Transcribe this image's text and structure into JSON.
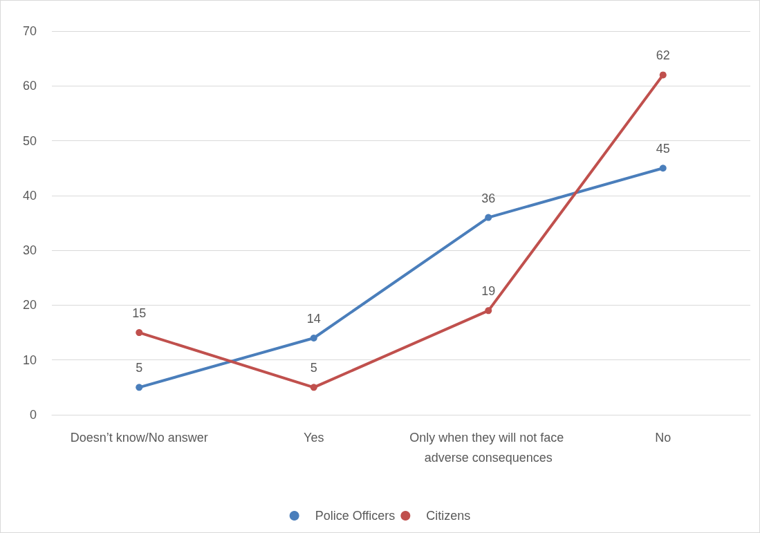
{
  "chart_data": {
    "type": "line",
    "categories": [
      "Doesn’t know/No answer",
      "Yes",
      "Only when they will not face adverse consequences",
      "No"
    ],
    "series": [
      {
        "name": "Police Officers",
        "color": "#4a7ebb",
        "values": [
          5,
          14,
          36,
          45
        ]
      },
      {
        "name": "Citizens",
        "color": "#c0504d",
        "values": [
          15,
          5,
          19,
          62
        ]
      }
    ],
    "ylim": [
      0,
      70
    ],
    "yticks": [
      0,
      10,
      20,
      30,
      40,
      50,
      60,
      70
    ],
    "grid": "y",
    "legend": "bottom",
    "marker": "circle",
    "data_labels": true
  }
}
